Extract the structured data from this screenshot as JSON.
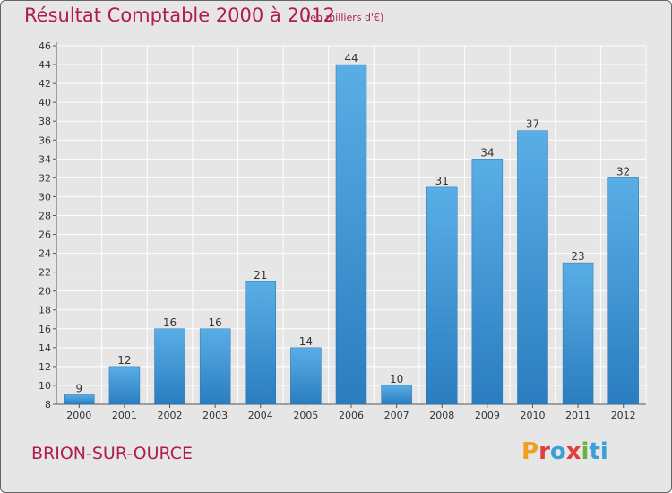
{
  "title": "Résultat Comptable 2000 à 2012",
  "subtitle": "(en milliers d'€)",
  "place": "BRION-SUR-OURCE",
  "logo": {
    "text": "Proxiti",
    "letters": [
      "P",
      "r",
      "o",
      "x",
      "i",
      "ti"
    ]
  },
  "colors": {
    "bar_light": "#5aaee6",
    "bar_dark": "#2a7dbf",
    "title": "#b01c4d"
  },
  "chart_data": {
    "type": "bar",
    "title": "Résultat Comptable 2000 à 2012",
    "ylabel": "en milliers d'€",
    "xlabel": "",
    "categories": [
      "2000",
      "2001",
      "2002",
      "2003",
      "2004",
      "2005",
      "2006",
      "2007",
      "2008",
      "2009",
      "2010",
      "2011",
      "2012"
    ],
    "values": [
      9,
      12,
      16,
      16,
      21,
      14,
      44,
      10,
      31,
      34,
      37,
      23,
      32
    ],
    "ylim": [
      8,
      46
    ],
    "yticks": [
      8,
      10,
      12,
      14,
      16,
      18,
      20,
      22,
      24,
      26,
      28,
      30,
      32,
      34,
      36,
      38,
      40,
      42,
      44,
      46
    ],
    "grid": true
  }
}
